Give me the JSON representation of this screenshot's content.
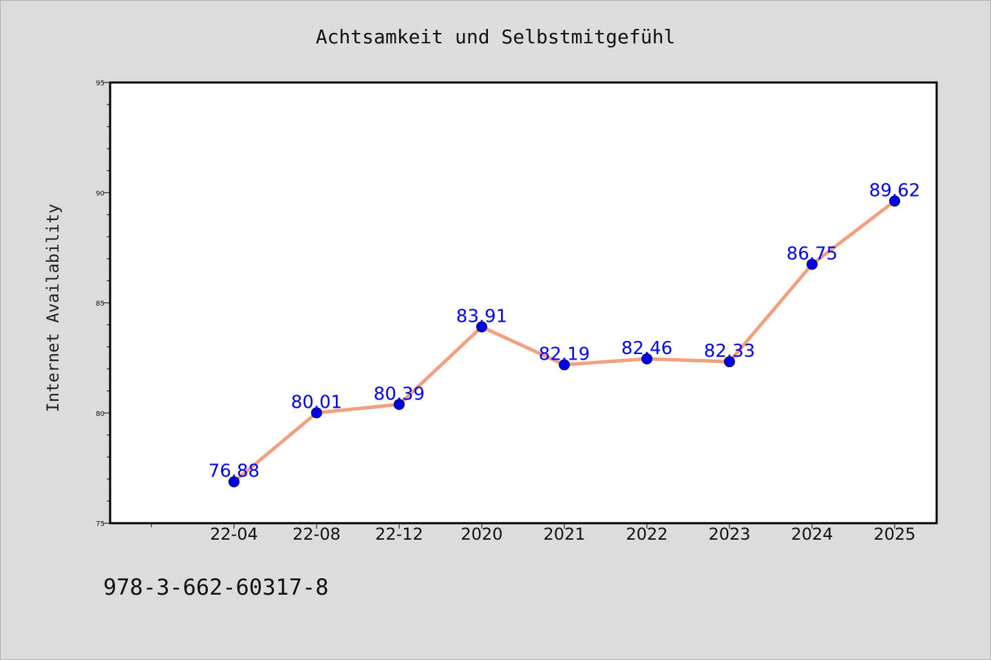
{
  "chart_data": {
    "type": "line",
    "title": "Achtsamkeit und Selbstmitgefühl",
    "ylabel": "Internet Availability",
    "xlabel": "",
    "categories": [
      "22-04",
      "22-08",
      "22-12",
      "2020",
      "2021",
      "2022",
      "2023",
      "2024",
      "2025"
    ],
    "series": [
      {
        "values": [
          76.88,
          80.01,
          80.39,
          83.91,
          82.19,
          82.46,
          82.33,
          86.75,
          89.62
        ],
        "labels": [
          "76.88",
          "80.01",
          "80.39",
          "83.91",
          "82.19",
          "82.46",
          "82.33",
          "86.75",
          "89.62"
        ]
      }
    ],
    "ylim": [
      75,
      95
    ],
    "yticks": [
      "75",
      "80",
      "85",
      "90",
      "95"
    ],
    "grid": false,
    "legend": "none"
  },
  "footnote": "978-3-662-60317-8",
  "colors": {
    "line": "#f4a07e",
    "marker": "#0000ee",
    "data_label": "#0000ee",
    "plot_background": "#ffffff",
    "page_background": "#dcdcdc"
  }
}
